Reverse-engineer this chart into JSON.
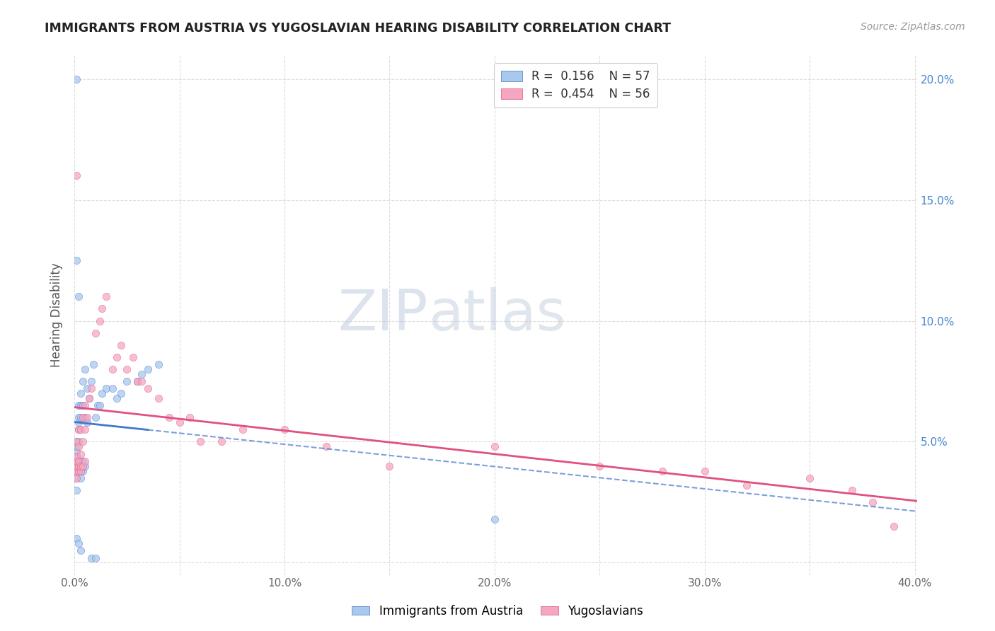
{
  "title": "IMMIGRANTS FROM AUSTRIA VS YUGOSLAVIAN HEARING DISABILITY CORRELATION CHART",
  "source": "Source: ZipAtlas.com",
  "ylabel": "Hearing Disability",
  "xlim": [
    0.0,
    0.401
  ],
  "ylim": [
    -0.005,
    0.21
  ],
  "xticks": [
    0.0,
    0.05,
    0.1,
    0.15,
    0.2,
    0.25,
    0.3,
    0.35,
    0.4
  ],
  "xticklabels": [
    "0.0%",
    "",
    "10.0%",
    "",
    "20.0%",
    "",
    "30.0%",
    "",
    "40.0%"
  ],
  "yticks_right_vals": [
    0.05,
    0.1,
    0.15,
    0.2
  ],
  "yticks_right_labels": [
    "5.0%",
    "10.0%",
    "15.0%",
    "20.0%"
  ],
  "color_austria": "#A8C8EE",
  "color_yugoslav": "#F4A8C0",
  "color_line_austria": "#4477CC",
  "color_line_yugoslav": "#E05080",
  "watermark_zip": "ZIP",
  "watermark_atlas": "atlas",
  "austria_x": [
    0.001,
    0.001,
    0.001,
    0.001,
    0.001,
    0.001,
    0.001,
    0.001,
    0.001,
    0.002,
    0.002,
    0.002,
    0.002,
    0.002,
    0.002,
    0.002,
    0.002,
    0.003,
    0.003,
    0.003,
    0.003,
    0.003,
    0.003,
    0.004,
    0.004,
    0.004,
    0.004,
    0.005,
    0.005,
    0.005,
    0.006,
    0.006,
    0.007,
    0.008,
    0.009,
    0.01,
    0.011,
    0.012,
    0.013,
    0.015,
    0.018,
    0.02,
    0.022,
    0.025,
    0.03,
    0.032,
    0.035,
    0.04,
    0.2,
    0.001,
    0.002,
    0.003,
    0.008,
    0.01,
    0.001,
    0.002,
    0.001
  ],
  "austria_y": [
    0.038,
    0.04,
    0.042,
    0.044,
    0.046,
    0.048,
    0.035,
    0.03,
    0.05,
    0.038,
    0.04,
    0.042,
    0.05,
    0.055,
    0.058,
    0.06,
    0.065,
    0.035,
    0.038,
    0.042,
    0.06,
    0.065,
    0.07,
    0.038,
    0.042,
    0.065,
    0.075,
    0.04,
    0.06,
    0.08,
    0.058,
    0.072,
    0.068,
    0.075,
    0.082,
    0.06,
    0.065,
    0.065,
    0.07,
    0.072,
    0.072,
    0.068,
    0.07,
    0.075,
    0.075,
    0.078,
    0.08,
    0.082,
    0.018,
    0.01,
    0.008,
    0.005,
    0.002,
    0.002,
    0.125,
    0.11,
    0.2
  ],
  "yugoslav_x": [
    0.001,
    0.001,
    0.001,
    0.001,
    0.001,
    0.001,
    0.002,
    0.002,
    0.002,
    0.002,
    0.002,
    0.003,
    0.003,
    0.003,
    0.003,
    0.004,
    0.004,
    0.004,
    0.005,
    0.005,
    0.005,
    0.006,
    0.007,
    0.008,
    0.01,
    0.012,
    0.013,
    0.015,
    0.018,
    0.02,
    0.022,
    0.025,
    0.028,
    0.03,
    0.032,
    0.035,
    0.04,
    0.045,
    0.05,
    0.055,
    0.06,
    0.07,
    0.08,
    0.1,
    0.12,
    0.15,
    0.2,
    0.25,
    0.28,
    0.3,
    0.32,
    0.35,
    0.37,
    0.38,
    0.39,
    0.001
  ],
  "yugoslav_y": [
    0.035,
    0.038,
    0.04,
    0.042,
    0.044,
    0.05,
    0.038,
    0.04,
    0.042,
    0.048,
    0.055,
    0.038,
    0.04,
    0.045,
    0.055,
    0.04,
    0.05,
    0.06,
    0.042,
    0.055,
    0.065,
    0.06,
    0.068,
    0.072,
    0.095,
    0.1,
    0.105,
    0.11,
    0.08,
    0.085,
    0.09,
    0.08,
    0.085,
    0.075,
    0.075,
    0.072,
    0.068,
    0.06,
    0.058,
    0.06,
    0.05,
    0.05,
    0.055,
    0.055,
    0.048,
    0.04,
    0.048,
    0.04,
    0.038,
    0.038,
    0.032,
    0.035,
    0.03,
    0.025,
    0.015,
    0.16
  ]
}
